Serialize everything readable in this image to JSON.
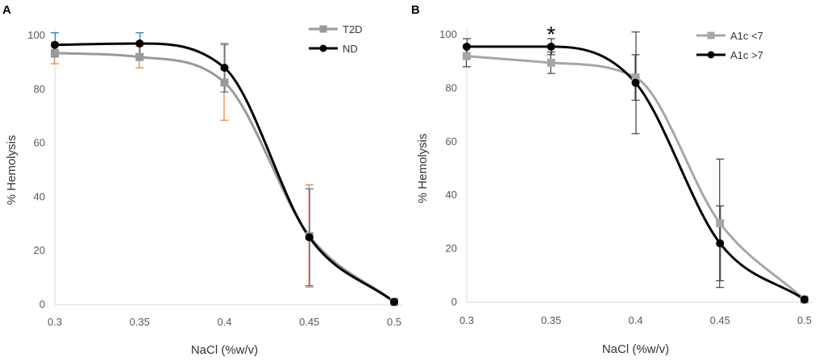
{
  "chart_data": [
    {
      "panel": "A",
      "type": "line",
      "title": "",
      "xlabel": "NaCl (%w/v)",
      "ylabel": "% Hemolysis",
      "x": [
        0.3,
        0.35,
        0.4,
        0.45,
        0.5
      ],
      "xticks": [
        "0.3",
        "0.35",
        "0.4",
        "0.45",
        "0.5"
      ],
      "yticks": [
        "0",
        "20",
        "40",
        "60",
        "80",
        "100"
      ],
      "xlim": [
        0.3,
        0.5
      ],
      "ylim": [
        0,
        100
      ],
      "grid": false,
      "legend_position": "top-right",
      "series": [
        {
          "name": "T2D",
          "marker": "square",
          "color": "#999999",
          "error_color": "#ED7D31",
          "values": [
            93.5,
            92.0,
            82.5,
            25.5,
            1.0
          ],
          "error": [
            4.0,
            4.0,
            14.0,
            19.0,
            0
          ]
        },
        {
          "name": "ND",
          "marker": "circle",
          "color": "#000000",
          "error_color": "#2E75B6",
          "values": [
            96.5,
            97.0,
            88.0,
            25.0,
            1.0
          ],
          "error": [
            4.5,
            4.0,
            9.0,
            18.0,
            0
          ]
        }
      ],
      "annotations": []
    },
    {
      "panel": "B",
      "type": "line",
      "title": "",
      "xlabel": "NaCl (%w/v)",
      "ylabel": "% Hemolysis",
      "x": [
        0.3,
        0.35,
        0.4,
        0.45,
        0.5
      ],
      "xticks": [
        "0.3",
        "0.35",
        "0.4",
        "0.45",
        "0.5"
      ],
      "yticks": [
        "0",
        "20",
        "40",
        "60",
        "80",
        "100"
      ],
      "xlim": [
        0.3,
        0.5
      ],
      "ylim": [
        0,
        100
      ],
      "grid": false,
      "legend_position": "top-right",
      "series": [
        {
          "name": "A1c <7",
          "marker": "square",
          "color": "#A6A6A6",
          "error_color": "#404040",
          "values": [
            92.0,
            89.5,
            84.0,
            29.5,
            1.0
          ],
          "error": [
            4.0,
            4.0,
            8.5,
            24.0,
            0
          ]
        },
        {
          "name": "A1c >7",
          "marker": "circle",
          "color": "#000000",
          "error_color": "#404040",
          "values": [
            95.5,
            95.5,
            82.0,
            22.0,
            1.0
          ],
          "error": [
            3.0,
            3.0,
            19.0,
            14.0,
            0
          ]
        }
      ],
      "annotations": [
        {
          "text": "*",
          "x": 0.35,
          "y": 101.5
        }
      ]
    }
  ]
}
